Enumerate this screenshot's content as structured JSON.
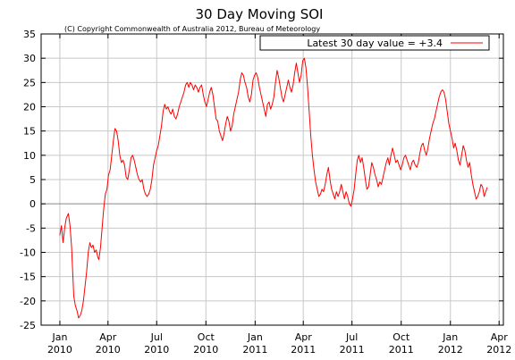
{
  "chart_data": {
    "type": "line",
    "title": "30 Day Moving SOI",
    "subtitle": "(C) Copyright Commonwealth of Australia 2012, Bureau of Meteorology",
    "legend": {
      "label": "Latest 30 day value = +3.4",
      "position": "top-right",
      "line_color": "#ff0000"
    },
    "grid": true,
    "xlim": [
      "2009-11-27",
      "2012-04-09"
    ],
    "ylim": [
      -25,
      35
    ],
    "y_ticks": [
      -25,
      -20,
      -15,
      -10,
      -5,
      0,
      5,
      10,
      15,
      20,
      25,
      30,
      35
    ],
    "x_ticks": [
      {
        "date": "2010-01-01",
        "month": "Jan",
        "year": "2010"
      },
      {
        "date": "2010-04-01",
        "month": "Apr",
        "year": "2010"
      },
      {
        "date": "2010-07-01",
        "month": "Jul",
        "year": "2010"
      },
      {
        "date": "2010-10-01",
        "month": "Oct",
        "year": "2010"
      },
      {
        "date": "2011-01-01",
        "month": "Jan",
        "year": "2011"
      },
      {
        "date": "2011-04-01",
        "month": "Apr",
        "year": "2011"
      },
      {
        "date": "2011-07-01",
        "month": "Jul",
        "year": "2011"
      },
      {
        "date": "2011-10-01",
        "month": "Oct",
        "year": "2011"
      },
      {
        "date": "2012-01-01",
        "month": "Jan",
        "year": "2012"
      },
      {
        "date": "2012-04-01",
        "month": "Apr",
        "year": "2012"
      }
    ],
    "colors": {
      "series": "#ff0000",
      "grid": "#c8c8c8",
      "zero_line": "#888888",
      "axis": "#000000"
    },
    "series": [
      {
        "points": [
          [
            "2010-01-01",
            -6.5
          ],
          [
            "2010-01-04",
            -4.5
          ],
          [
            "2010-01-07",
            -8.0
          ],
          [
            "2010-01-10",
            -5.0
          ],
          [
            "2010-01-13",
            -3.0
          ],
          [
            "2010-01-17",
            -2.0
          ],
          [
            "2010-01-20",
            -4.5
          ],
          [
            "2010-01-23",
            -9.0
          ],
          [
            "2010-01-25",
            -14.0
          ],
          [
            "2010-01-27",
            -19.0
          ],
          [
            "2010-01-30",
            -21.0
          ],
          [
            "2010-02-02",
            -22.0
          ],
          [
            "2010-02-05",
            -23.5
          ],
          [
            "2010-02-08",
            -23.0
          ],
          [
            "2010-02-11",
            -22.0
          ],
          [
            "2010-02-14",
            -20.0
          ],
          [
            "2010-02-17",
            -17.0
          ],
          [
            "2010-02-20",
            -14.0
          ],
          [
            "2010-02-23",
            -10.0
          ],
          [
            "2010-02-26",
            -8.0
          ],
          [
            "2010-03-01",
            -9.0
          ],
          [
            "2010-03-04",
            -8.5
          ],
          [
            "2010-03-07",
            -10.0
          ],
          [
            "2010-03-10",
            -9.5
          ],
          [
            "2010-03-13",
            -11.0
          ],
          [
            "2010-03-15",
            -11.5
          ],
          [
            "2010-03-18",
            -9.0
          ],
          [
            "2010-03-21",
            -5.0
          ],
          [
            "2010-03-24",
            -1.0
          ],
          [
            "2010-03-27",
            2.0
          ],
          [
            "2010-03-30",
            3.0
          ],
          [
            "2010-04-02",
            6.0
          ],
          [
            "2010-04-05",
            7.0
          ],
          [
            "2010-04-08",
            10.0
          ],
          [
            "2010-04-11",
            13.0
          ],
          [
            "2010-04-14",
            15.5
          ],
          [
            "2010-04-17",
            15.0
          ],
          [
            "2010-04-20",
            13.0
          ],
          [
            "2010-04-23",
            10.0
          ],
          [
            "2010-04-26",
            8.5
          ],
          [
            "2010-04-29",
            9.0
          ],
          [
            "2010-05-02",
            8.0
          ],
          [
            "2010-05-05",
            5.5
          ],
          [
            "2010-05-08",
            5.0
          ],
          [
            "2010-05-11",
            7.0
          ],
          [
            "2010-05-14",
            9.5
          ],
          [
            "2010-05-17",
            10.0
          ],
          [
            "2010-05-20",
            9.0
          ],
          [
            "2010-05-23",
            7.5
          ],
          [
            "2010-05-26",
            6.0
          ],
          [
            "2010-05-29",
            5.0
          ],
          [
            "2010-06-01",
            4.5
          ],
          [
            "2010-06-04",
            5.0
          ],
          [
            "2010-06-07",
            3.0
          ],
          [
            "2010-06-10",
            2.0
          ],
          [
            "2010-06-13",
            1.5
          ],
          [
            "2010-06-16",
            2.0
          ],
          [
            "2010-06-19",
            3.0
          ],
          [
            "2010-06-22",
            5.0
          ],
          [
            "2010-06-25",
            8.0
          ],
          [
            "2010-06-28",
            9.5
          ],
          [
            "2010-07-01",
            11.0
          ],
          [
            "2010-07-04",
            12.0
          ],
          [
            "2010-07-07",
            14.0
          ],
          [
            "2010-07-10",
            16.0
          ],
          [
            "2010-07-13",
            19.0
          ],
          [
            "2010-07-16",
            20.5
          ],
          [
            "2010-07-19",
            19.5
          ],
          [
            "2010-07-22",
            20.0
          ],
          [
            "2010-07-25",
            19.0
          ],
          [
            "2010-07-28",
            18.5
          ],
          [
            "2010-07-31",
            19.5
          ],
          [
            "2010-08-03",
            18.0
          ],
          [
            "2010-08-06",
            17.5
          ],
          [
            "2010-08-09",
            18.5
          ],
          [
            "2010-08-12",
            20.0
          ],
          [
            "2010-08-15",
            21.0
          ],
          [
            "2010-08-18",
            22.0
          ],
          [
            "2010-08-21",
            23.0
          ],
          [
            "2010-08-24",
            24.5
          ],
          [
            "2010-08-27",
            25.0
          ],
          [
            "2010-08-30",
            24.0
          ],
          [
            "2010-09-02",
            25.0
          ],
          [
            "2010-09-05",
            24.5
          ],
          [
            "2010-09-08",
            23.5
          ],
          [
            "2010-09-11",
            24.5
          ],
          [
            "2010-09-14",
            24.0
          ],
          [
            "2010-09-17",
            23.0
          ],
          [
            "2010-09-20",
            24.0
          ],
          [
            "2010-09-23",
            24.5
          ],
          [
            "2010-09-26",
            22.5
          ],
          [
            "2010-09-29",
            21.0
          ],
          [
            "2010-10-02",
            20.0
          ],
          [
            "2010-10-05",
            21.5
          ],
          [
            "2010-10-08",
            23.0
          ],
          [
            "2010-10-11",
            24.0
          ],
          [
            "2010-10-14",
            22.5
          ],
          [
            "2010-10-17",
            20.0
          ],
          [
            "2010-10-20",
            17.5
          ],
          [
            "2010-10-23",
            17.0
          ],
          [
            "2010-10-26",
            15.0
          ],
          [
            "2010-10-29",
            14.0
          ],
          [
            "2010-11-01",
            13.0
          ],
          [
            "2010-11-04",
            14.5
          ],
          [
            "2010-11-07",
            16.5
          ],
          [
            "2010-11-10",
            18.0
          ],
          [
            "2010-11-13",
            17.0
          ],
          [
            "2010-11-16",
            15.0
          ],
          [
            "2010-11-19",
            16.0
          ],
          [
            "2010-11-22",
            18.5
          ],
          [
            "2010-11-25",
            20.0
          ],
          [
            "2010-11-28",
            21.5
          ],
          [
            "2010-12-01",
            23.0
          ],
          [
            "2010-12-04",
            25.5
          ],
          [
            "2010-12-07",
            27.0
          ],
          [
            "2010-12-10",
            26.5
          ],
          [
            "2010-12-13",
            25.0
          ],
          [
            "2010-12-16",
            24.0
          ],
          [
            "2010-12-19",
            22.0
          ],
          [
            "2010-12-22",
            21.0
          ],
          [
            "2010-12-25",
            22.5
          ],
          [
            "2010-12-28",
            25.5
          ],
          [
            "2010-12-31",
            26.5
          ],
          [
            "2011-01-03",
            27.0
          ],
          [
            "2011-01-06",
            26.0
          ],
          [
            "2011-01-09",
            24.0
          ],
          [
            "2011-01-12",
            22.5
          ],
          [
            "2011-01-15",
            21.0
          ],
          [
            "2011-01-18",
            19.5
          ],
          [
            "2011-01-21",
            18.0
          ],
          [
            "2011-01-24",
            20.5
          ],
          [
            "2011-01-27",
            21.0
          ],
          [
            "2011-01-30",
            19.5
          ],
          [
            "2011-02-02",
            20.5
          ],
          [
            "2011-02-05",
            22.0
          ],
          [
            "2011-02-08",
            25.0
          ],
          [
            "2011-02-11",
            27.5
          ],
          [
            "2011-02-14",
            26.0
          ],
          [
            "2011-02-17",
            24.0
          ],
          [
            "2011-02-20",
            22.0
          ],
          [
            "2011-02-23",
            21.0
          ],
          [
            "2011-02-26",
            22.5
          ],
          [
            "2011-03-01",
            24.0
          ],
          [
            "2011-03-04",
            25.5
          ],
          [
            "2011-03-07",
            24.0
          ],
          [
            "2011-03-10",
            23.0
          ],
          [
            "2011-03-13",
            24.5
          ],
          [
            "2011-03-16",
            27.0
          ],
          [
            "2011-03-19",
            29.0
          ],
          [
            "2011-03-22",
            27.0
          ],
          [
            "2011-03-25",
            25.0
          ],
          [
            "2011-03-28",
            26.5
          ],
          [
            "2011-03-31",
            29.5
          ],
          [
            "2011-04-03",
            30.0
          ],
          [
            "2011-04-06",
            28.0
          ],
          [
            "2011-04-09",
            24.0
          ],
          [
            "2011-04-12",
            19.0
          ],
          [
            "2011-04-15",
            14.0
          ],
          [
            "2011-04-18",
            10.0
          ],
          [
            "2011-04-21",
            7.0
          ],
          [
            "2011-04-24",
            4.5
          ],
          [
            "2011-04-27",
            3.0
          ],
          [
            "2011-04-30",
            1.5
          ],
          [
            "2011-05-03",
            2.0
          ],
          [
            "2011-05-06",
            3.0
          ],
          [
            "2011-05-09",
            2.5
          ],
          [
            "2011-05-12",
            4.0
          ],
          [
            "2011-05-15",
            6.0
          ],
          [
            "2011-05-18",
            7.5
          ],
          [
            "2011-05-21",
            5.0
          ],
          [
            "2011-05-24",
            3.0
          ],
          [
            "2011-05-27",
            2.0
          ],
          [
            "2011-05-30",
            1.0
          ],
          [
            "2011-06-02",
            2.5
          ],
          [
            "2011-06-05",
            1.5
          ],
          [
            "2011-06-08",
            2.5
          ],
          [
            "2011-06-11",
            4.0
          ],
          [
            "2011-06-14",
            2.5
          ],
          [
            "2011-06-17",
            1.0
          ],
          [
            "2011-06-20",
            2.5
          ],
          [
            "2011-06-23",
            1.5
          ],
          [
            "2011-06-26",
            0.0
          ],
          [
            "2011-06-29",
            -0.5
          ],
          [
            "2011-07-02",
            1.0
          ],
          [
            "2011-07-05",
            3.0
          ],
          [
            "2011-07-08",
            6.0
          ],
          [
            "2011-07-11",
            9.0
          ],
          [
            "2011-07-14",
            10.0
          ],
          [
            "2011-07-17",
            8.5
          ],
          [
            "2011-07-20",
            9.5
          ],
          [
            "2011-07-23",
            7.5
          ],
          [
            "2011-07-26",
            5.0
          ],
          [
            "2011-07-29",
            3.0
          ],
          [
            "2011-08-01",
            3.5
          ],
          [
            "2011-08-04",
            6.0
          ],
          [
            "2011-08-07",
            8.5
          ],
          [
            "2011-08-10",
            7.5
          ],
          [
            "2011-08-13",
            6.0
          ],
          [
            "2011-08-16",
            5.0
          ],
          [
            "2011-08-19",
            3.5
          ],
          [
            "2011-08-22",
            4.5
          ],
          [
            "2011-08-25",
            4.0
          ],
          [
            "2011-08-28",
            5.5
          ],
          [
            "2011-08-31",
            7.0
          ],
          [
            "2011-09-03",
            8.5
          ],
          [
            "2011-09-06",
            9.5
          ],
          [
            "2011-09-09",
            8.0
          ],
          [
            "2011-09-12",
            10.0
          ],
          [
            "2011-09-15",
            11.5
          ],
          [
            "2011-09-18",
            10.0
          ],
          [
            "2011-09-21",
            8.5
          ],
          [
            "2011-09-24",
            9.0
          ],
          [
            "2011-09-27",
            8.0
          ],
          [
            "2011-09-30",
            7.0
          ],
          [
            "2011-10-03",
            8.0
          ],
          [
            "2011-10-06",
            9.5
          ],
          [
            "2011-10-09",
            10.0
          ],
          [
            "2011-10-12",
            9.0
          ],
          [
            "2011-10-15",
            8.0
          ],
          [
            "2011-10-18",
            7.0
          ],
          [
            "2011-10-21",
            8.5
          ],
          [
            "2011-10-24",
            9.0
          ],
          [
            "2011-10-27",
            8.0
          ],
          [
            "2011-10-30",
            7.5
          ],
          [
            "2011-11-02",
            8.5
          ],
          [
            "2011-11-05",
            10.5
          ],
          [
            "2011-11-08",
            12.0
          ],
          [
            "2011-11-11",
            12.5
          ],
          [
            "2011-11-14",
            11.0
          ],
          [
            "2011-11-17",
            10.0
          ],
          [
            "2011-11-20",
            11.5
          ],
          [
            "2011-11-23",
            13.5
          ],
          [
            "2011-11-26",
            15.0
          ],
          [
            "2011-11-29",
            16.5
          ],
          [
            "2011-12-02",
            17.5
          ],
          [
            "2011-12-05",
            19.0
          ],
          [
            "2011-12-08",
            20.5
          ],
          [
            "2011-12-11",
            22.0
          ],
          [
            "2011-12-14",
            23.0
          ],
          [
            "2011-12-17",
            23.5
          ],
          [
            "2011-12-20",
            23.0
          ],
          [
            "2011-12-23",
            21.5
          ],
          [
            "2011-12-26",
            19.0
          ],
          [
            "2011-12-29",
            16.5
          ],
          [
            "2012-01-01",
            15.0
          ],
          [
            "2012-01-04",
            13.5
          ],
          [
            "2012-01-07",
            11.5
          ],
          [
            "2012-01-10",
            12.5
          ],
          [
            "2012-01-13",
            11.0
          ],
          [
            "2012-01-16",
            9.0
          ],
          [
            "2012-01-19",
            8.0
          ],
          [
            "2012-01-22",
            10.0
          ],
          [
            "2012-01-25",
            12.0
          ],
          [
            "2012-01-28",
            11.0
          ],
          [
            "2012-01-31",
            9.0
          ],
          [
            "2012-02-03",
            7.5
          ],
          [
            "2012-02-06",
            8.5
          ],
          [
            "2012-02-09",
            6.0
          ],
          [
            "2012-02-12",
            4.0
          ],
          [
            "2012-02-15",
            2.5
          ],
          [
            "2012-02-18",
            1.0
          ],
          [
            "2012-02-21",
            1.5
          ],
          [
            "2012-02-24",
            2.5
          ],
          [
            "2012-02-27",
            4.0
          ],
          [
            "2012-03-01",
            3.5
          ],
          [
            "2012-03-04",
            1.5
          ],
          [
            "2012-03-07",
            2.5
          ],
          [
            "2012-03-10",
            3.4
          ]
        ]
      }
    ]
  }
}
